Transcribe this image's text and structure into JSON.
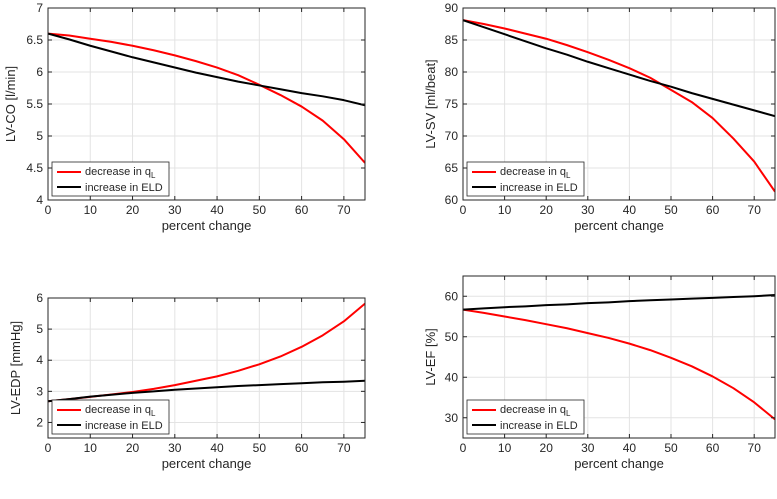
{
  "colors": {
    "red": "#ff0000",
    "black": "#000000"
  },
  "legend": {
    "red_prefix": "decrease in q",
    "red_sub": "L",
    "black": "increase in ELD",
    "placement": "bottom-left"
  },
  "chart_data": [
    {
      "type": "line",
      "xlabel": "percent change",
      "ylabel": "LV-CO [l/min]",
      "xlim": [
        0,
        75
      ],
      "ylim": [
        4,
        7
      ],
      "xticks": [
        0,
        10,
        20,
        30,
        40,
        50,
        60,
        70
      ],
      "yticks": [
        4,
        4.5,
        5,
        5.5,
        6,
        6.5,
        7
      ],
      "yticklabels": [
        "4",
        "4.5",
        "5",
        "5.5",
        "6",
        "6.5",
        "7"
      ],
      "grid": true,
      "x": [
        0,
        5,
        10,
        15,
        20,
        25,
        30,
        35,
        40,
        45,
        50,
        55,
        60,
        65,
        70,
        75
      ],
      "series": [
        {
          "color": "red",
          "values": [
            6.6,
            6.57,
            6.52,
            6.47,
            6.41,
            6.34,
            6.26,
            6.17,
            6.07,
            5.95,
            5.8,
            5.64,
            5.46,
            5.24,
            4.95,
            4.58
          ]
        },
        {
          "color": "black",
          "values": [
            6.6,
            6.51,
            6.41,
            6.32,
            6.23,
            6.15,
            6.07,
            5.99,
            5.92,
            5.85,
            5.79,
            5.73,
            5.67,
            5.62,
            5.56,
            5.48
          ]
        }
      ]
    },
    {
      "type": "line",
      "xlabel": "percent change",
      "ylabel": "LV-SV [ml/beat]",
      "xlim": [
        0,
        75
      ],
      "ylim": [
        60,
        90
      ],
      "xticks": [
        0,
        10,
        20,
        30,
        40,
        50,
        60,
        70
      ],
      "yticks": [
        60,
        65,
        70,
        75,
        80,
        85,
        90
      ],
      "yticklabels": [
        "60",
        "65",
        "70",
        "75",
        "80",
        "85",
        "90"
      ],
      "grid": true,
      "x": [
        0,
        5,
        10,
        15,
        20,
        25,
        30,
        35,
        40,
        45,
        50,
        55,
        60,
        65,
        70,
        75
      ],
      "series": [
        {
          "color": "red",
          "values": [
            88.1,
            87.5,
            86.8,
            86.0,
            85.2,
            84.2,
            83.1,
            81.9,
            80.6,
            79.1,
            77.2,
            75.3,
            72.8,
            69.6,
            66.0,
            61.3
          ]
        },
        {
          "color": "black",
          "values": [
            88.1,
            87.0,
            85.9,
            84.8,
            83.7,
            82.7,
            81.6,
            80.6,
            79.6,
            78.6,
            77.7,
            76.7,
            75.8,
            74.9,
            74.0,
            73.1
          ]
        }
      ]
    },
    {
      "type": "line",
      "xlabel": "percent change",
      "ylabel": "LV-EDP [mmHg]",
      "xlim": [
        0,
        75
      ],
      "ylim": [
        1.5,
        6
      ],
      "xticks": [
        0,
        10,
        20,
        30,
        40,
        50,
        60,
        70
      ],
      "yticks": [
        2,
        3,
        4,
        5,
        6
      ],
      "yticklabels": [
        "2",
        "3",
        "4",
        "5",
        "6"
      ],
      "grid": true,
      "x": [
        0,
        5,
        10,
        15,
        20,
        25,
        30,
        35,
        40,
        45,
        50,
        55,
        60,
        65,
        70,
        75
      ],
      "series": [
        {
          "color": "red",
          "values": [
            2.68,
            2.75,
            2.82,
            2.9,
            2.98,
            3.08,
            3.2,
            3.34,
            3.48,
            3.66,
            3.87,
            4.12,
            4.43,
            4.8,
            5.25,
            5.82
          ]
        },
        {
          "color": "black",
          "values": [
            2.68,
            2.75,
            2.83,
            2.89,
            2.95,
            3.0,
            3.05,
            3.09,
            3.13,
            3.17,
            3.2,
            3.23,
            3.26,
            3.29,
            3.31,
            3.34
          ]
        }
      ]
    },
    {
      "type": "line",
      "xlabel": "percent change",
      "ylabel": "LV-EF [%]",
      "xlim": [
        0,
        75
      ],
      "ylim": [
        25,
        65
      ],
      "xticks": [
        0,
        10,
        20,
        30,
        40,
        50,
        60,
        70
      ],
      "yticks": [
        30,
        40,
        50,
        60
      ],
      "yticklabels": [
        "30",
        "40",
        "50",
        "60"
      ],
      "grid": true,
      "x": [
        0,
        5,
        10,
        15,
        20,
        25,
        30,
        35,
        40,
        45,
        50,
        55,
        60,
        65,
        70,
        75
      ],
      "series": [
        {
          "color": "red",
          "values": [
            56.7,
            55.9,
            55.0,
            54.1,
            53.1,
            52.1,
            50.9,
            49.7,
            48.3,
            46.7,
            44.8,
            42.7,
            40.2,
            37.3,
            33.8,
            29.6
          ]
        },
        {
          "color": "black",
          "values": [
            56.7,
            57.0,
            57.3,
            57.5,
            57.8,
            58.0,
            58.3,
            58.5,
            58.8,
            59.0,
            59.2,
            59.4,
            59.6,
            59.8,
            60.0,
            60.3
          ]
        }
      ]
    }
  ]
}
